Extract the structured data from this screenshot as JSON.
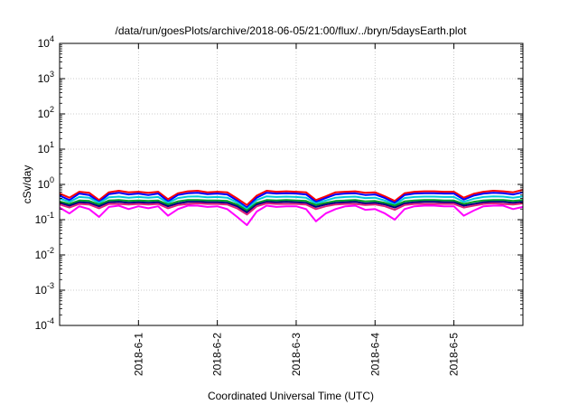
{
  "chart_data": {
    "type": "line",
    "title": "/data/run/goesPlots/archive/2018-06-05/21:00/flux/../bryn/5daysEarth.plot",
    "xlabel": "Coordinated Universal Time (UTC)",
    "ylabel": "cSv/day",
    "yscale": "log",
    "ylim": [
      0.0001,
      10000
    ],
    "xlim": [
      "2018-05-31 00:00",
      "2018-06-05 21:00"
    ],
    "grid": true,
    "x_ticks": [
      "2018-6-1",
      "2018-6-2",
      "2018-6-3",
      "2018-6-4",
      "2018-6-5"
    ],
    "y_ticks": [
      {
        "base": "10",
        "exp": "-4"
      },
      {
        "base": "10",
        "exp": "-3"
      },
      {
        "base": "10",
        "exp": "-2"
      },
      {
        "base": "10",
        "exp": "-1"
      },
      {
        "base": "10",
        "exp": "0"
      },
      {
        "base": "10",
        "exp": "1"
      },
      {
        "base": "10",
        "exp": "2"
      },
      {
        "base": "10",
        "exp": "3"
      },
      {
        "base": "10",
        "exp": "4"
      }
    ],
    "series": [
      {
        "color": "#ff0000",
        "values": [
          0.55,
          0.42,
          0.62,
          0.58,
          0.36,
          0.6,
          0.66,
          0.6,
          0.62,
          0.58,
          0.62,
          0.38,
          0.56,
          0.64,
          0.66,
          0.6,
          0.62,
          0.6,
          0.4,
          0.26,
          0.48,
          0.66,
          0.62,
          0.64,
          0.62,
          0.6,
          0.36,
          0.46,
          0.6,
          0.62,
          0.64,
          0.58,
          0.6,
          0.46,
          0.34,
          0.56,
          0.62,
          0.64,
          0.64,
          0.62,
          0.62,
          0.42,
          0.54,
          0.62,
          0.66,
          0.64,
          0.6,
          0.7
        ]
      },
      {
        "color": "#0000ff",
        "values": [
          0.48,
          0.36,
          0.55,
          0.5,
          0.32,
          0.53,
          0.58,
          0.52,
          0.55,
          0.5,
          0.55,
          0.33,
          0.5,
          0.56,
          0.58,
          0.53,
          0.55,
          0.52,
          0.35,
          0.22,
          0.42,
          0.58,
          0.55,
          0.56,
          0.55,
          0.52,
          0.32,
          0.41,
          0.52,
          0.55,
          0.56,
          0.5,
          0.52,
          0.41,
          0.3,
          0.5,
          0.55,
          0.56,
          0.56,
          0.55,
          0.55,
          0.37,
          0.48,
          0.55,
          0.58,
          0.56,
          0.52,
          0.6
        ]
      },
      {
        "color": "#00c8d8",
        "values": [
          0.4,
          0.32,
          0.44,
          0.42,
          0.3,
          0.43,
          0.45,
          0.42,
          0.44,
          0.42,
          0.44,
          0.3,
          0.41,
          0.45,
          0.46,
          0.43,
          0.44,
          0.42,
          0.31,
          0.2,
          0.36,
          0.46,
          0.44,
          0.45,
          0.44,
          0.42,
          0.29,
          0.35,
          0.42,
          0.44,
          0.45,
          0.41,
          0.42,
          0.35,
          0.27,
          0.41,
          0.44,
          0.45,
          0.45,
          0.44,
          0.44,
          0.32,
          0.39,
          0.44,
          0.46,
          0.45,
          0.42,
          0.46
        ]
      },
      {
        "color": "#00a020",
        "values": [
          0.33,
          0.28,
          0.35,
          0.34,
          0.27,
          0.35,
          0.36,
          0.34,
          0.35,
          0.34,
          0.35,
          0.27,
          0.33,
          0.36,
          0.36,
          0.35,
          0.35,
          0.34,
          0.27,
          0.18,
          0.3,
          0.36,
          0.35,
          0.36,
          0.35,
          0.34,
          0.26,
          0.3,
          0.34,
          0.35,
          0.36,
          0.33,
          0.34,
          0.3,
          0.25,
          0.33,
          0.35,
          0.36,
          0.36,
          0.35,
          0.35,
          0.28,
          0.32,
          0.35,
          0.36,
          0.36,
          0.34,
          0.36
        ]
      },
      {
        "color": "#000080",
        "values": [
          0.3,
          0.25,
          0.31,
          0.3,
          0.24,
          0.31,
          0.32,
          0.3,
          0.31,
          0.3,
          0.31,
          0.24,
          0.29,
          0.32,
          0.32,
          0.31,
          0.31,
          0.3,
          0.24,
          0.16,
          0.27,
          0.32,
          0.31,
          0.32,
          0.31,
          0.3,
          0.23,
          0.27,
          0.3,
          0.31,
          0.32,
          0.29,
          0.3,
          0.27,
          0.22,
          0.29,
          0.31,
          0.32,
          0.32,
          0.31,
          0.31,
          0.25,
          0.28,
          0.31,
          0.32,
          0.32,
          0.3,
          0.32
        ]
      },
      {
        "color": "#e0207a",
        "values": [
          0.27,
          0.22,
          0.28,
          0.27,
          0.21,
          0.28,
          0.28,
          0.27,
          0.28,
          0.27,
          0.28,
          0.21,
          0.26,
          0.28,
          0.29,
          0.28,
          0.28,
          0.27,
          0.21,
          0.14,
          0.24,
          0.29,
          0.28,
          0.28,
          0.28,
          0.27,
          0.2,
          0.24,
          0.27,
          0.28,
          0.28,
          0.26,
          0.27,
          0.24,
          0.19,
          0.26,
          0.28,
          0.28,
          0.28,
          0.28,
          0.28,
          0.22,
          0.25,
          0.28,
          0.29,
          0.28,
          0.27,
          0.29
        ]
      },
      {
        "color": "#ff00ff",
        "values": [
          0.22,
          0.15,
          0.24,
          0.2,
          0.12,
          0.23,
          0.25,
          0.2,
          0.24,
          0.21,
          0.24,
          0.13,
          0.2,
          0.25,
          0.25,
          0.23,
          0.24,
          0.2,
          0.12,
          0.07,
          0.17,
          0.25,
          0.23,
          0.24,
          0.24,
          0.2,
          0.09,
          0.15,
          0.2,
          0.24,
          0.25,
          0.19,
          0.2,
          0.15,
          0.1,
          0.2,
          0.24,
          0.25,
          0.25,
          0.24,
          0.24,
          0.13,
          0.18,
          0.24,
          0.25,
          0.25,
          0.2,
          0.23
        ]
      }
    ]
  }
}
